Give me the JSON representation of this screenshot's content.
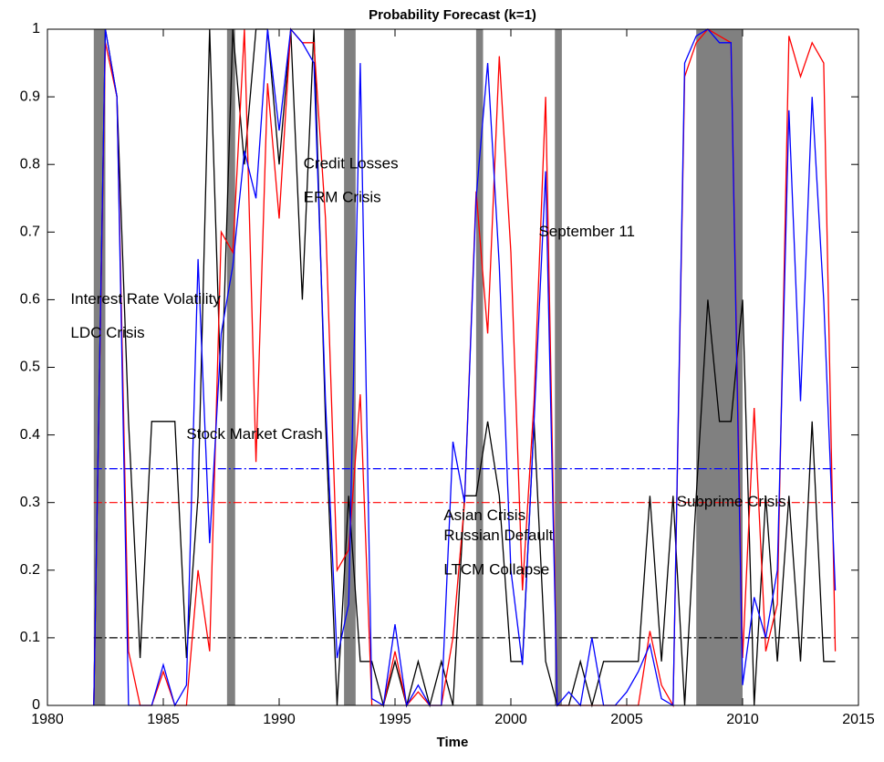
{
  "chart_data": {
    "type": "line",
    "title": "Probability Forecast (k=1)",
    "x_label": "Time",
    "xlim": [
      1980,
      2015
    ],
    "ylim": [
      0,
      1
    ],
    "xticks": [
      1980,
      1985,
      1990,
      1995,
      2000,
      2005,
      2010,
      2015
    ],
    "yticks": [
      0,
      0.1,
      0.2,
      0.3,
      0.4,
      0.5,
      0.6,
      0.7,
      0.8,
      0.9,
      1
    ],
    "x": [
      1982.0,
      1982.5,
      1983.0,
      1983.5,
      1984.0,
      1984.5,
      1985.0,
      1985.5,
      1986.0,
      1986.5,
      1987.0,
      1987.5,
      1988.0,
      1988.5,
      1989.0,
      1989.5,
      1990.0,
      1990.5,
      1991.0,
      1991.5,
      1992.0,
      1992.5,
      1993.0,
      1993.5,
      1994.0,
      1994.5,
      1995.0,
      1995.5,
      1996.0,
      1996.5,
      1997.0,
      1997.5,
      1998.0,
      1998.5,
      1999.0,
      1999.5,
      2000.0,
      2000.5,
      2001.0,
      2001.5,
      2002.0,
      2002.5,
      2003.0,
      2003.5,
      2004.0,
      2004.5,
      2005.0,
      2005.5,
      2006.0,
      2006.5,
      2007.0,
      2007.5,
      2008.0,
      2008.5,
      2009.0,
      2009.5,
      2010.0,
      2010.5,
      2011.0,
      2011.5,
      2012.0,
      2012.5,
      2013.0,
      2013.5,
      2014.0
    ],
    "series": [
      {
        "color": "#000000",
        "values": [
          0,
          1,
          0.9,
          0.42,
          0.07,
          0.42,
          0.42,
          0.42,
          0.07,
          0.31,
          1,
          0.45,
          1,
          0.8,
          1,
          1,
          0.8,
          1,
          0.6,
          1,
          0.42,
          0,
          0.31,
          0.065,
          0.065,
          0,
          0.065,
          0,
          0.065,
          0,
          0.065,
          0,
          0.31,
          0.31,
          0.42,
          0.31,
          0.065,
          0.065,
          0.42,
          0.065,
          0,
          0,
          0.065,
          0,
          0.065,
          0.065,
          0.065,
          0.065,
          0.31,
          0.065,
          0.31,
          0,
          0.31,
          0.6,
          0.42,
          0.42,
          0.6,
          0,
          0.31,
          0.065,
          0.31,
          0.065,
          0.42,
          0.065,
          0.065
        ]
      },
      {
        "color": "#ff0000",
        "values": [
          0,
          0.98,
          0.9,
          0.08,
          0,
          0,
          0.05,
          0,
          0,
          0.2,
          0.08,
          0.7,
          0.67,
          1,
          0.36,
          0.92,
          0.72,
          1,
          0.98,
          0.98,
          0.72,
          0.2,
          0.23,
          0.46,
          0,
          0,
          0.08,
          0,
          0.02,
          0,
          0,
          0.1,
          0.3,
          0.76,
          0.55,
          0.96,
          0.67,
          0.17,
          0.45,
          0.9,
          0,
          0,
          0,
          0,
          0,
          0,
          0,
          0,
          0.11,
          0.03,
          0,
          0.93,
          0.98,
          1,
          0.99,
          0.98,
          0.07,
          0.44,
          0.08,
          0.15,
          0.99,
          0.93,
          0.98,
          0.95,
          0.08
        ]
      },
      {
        "color": "#0000ff",
        "values": [
          0,
          1,
          0.9,
          0,
          0,
          0,
          0.06,
          0,
          0.03,
          0.66,
          0.24,
          0.55,
          0.65,
          0.82,
          0.75,
          1,
          0.85,
          1,
          0.98,
          0.95,
          0.45,
          0.07,
          0.15,
          0.95,
          0.01,
          0,
          0.12,
          0,
          0.03,
          0,
          0,
          0.39,
          0.3,
          0.75,
          0.95,
          0.65,
          0.2,
          0.06,
          0.42,
          0.79,
          0,
          0.02,
          0,
          0.1,
          0,
          0,
          0.02,
          0.05,
          0.09,
          0.01,
          0,
          0.95,
          0.99,
          1,
          0.98,
          0.98,
          0.03,
          0.16,
          0.1,
          0.2,
          0.88,
          0.45,
          0.9,
          0.6,
          0.17
        ]
      }
    ],
    "shaded_regions": [
      [
        1982.0,
        1982.5
      ],
      [
        1987.75,
        1988.1
      ],
      [
        1992.8,
        1993.3
      ],
      [
        1998.5,
        1998.8
      ],
      [
        2001.9,
        2002.2
      ],
      [
        2008.0,
        2010.0
      ]
    ],
    "shade_color": "#808080",
    "thresholds": [
      {
        "value": 0.35,
        "color": "#0000ff"
      },
      {
        "value": 0.3,
        "color": "#ff0000"
      },
      {
        "value": 0.1,
        "color": "#000000"
      }
    ],
    "threshold_range": [
      1982,
      2014
    ],
    "annotations": [
      {
        "text": "Interest Rate Volatility",
        "x": 1981.0,
        "y": 0.6
      },
      {
        "text": "LDC Crisis",
        "x": 1981.0,
        "y": 0.55
      },
      {
        "text": "Stock Market Crash",
        "x": 1986.0,
        "y": 0.4
      },
      {
        "text": "Credit Losses",
        "x": 1991.05,
        "y": 0.8
      },
      {
        "text": "ERM Crisis",
        "x": 1991.05,
        "y": 0.75
      },
      {
        "text": "September 11",
        "x": 2001.2,
        "y": 0.7
      },
      {
        "text": "Asian Crisis",
        "x": 1997.1,
        "y": 0.28
      },
      {
        "text": "Russian Default",
        "x": 1997.1,
        "y": 0.25
      },
      {
        "text": "LTCM Collapse",
        "x": 1997.1,
        "y": 0.2
      },
      {
        "text": "Subprime Crisis",
        "x": 2007.15,
        "y": 0.3
      }
    ]
  }
}
